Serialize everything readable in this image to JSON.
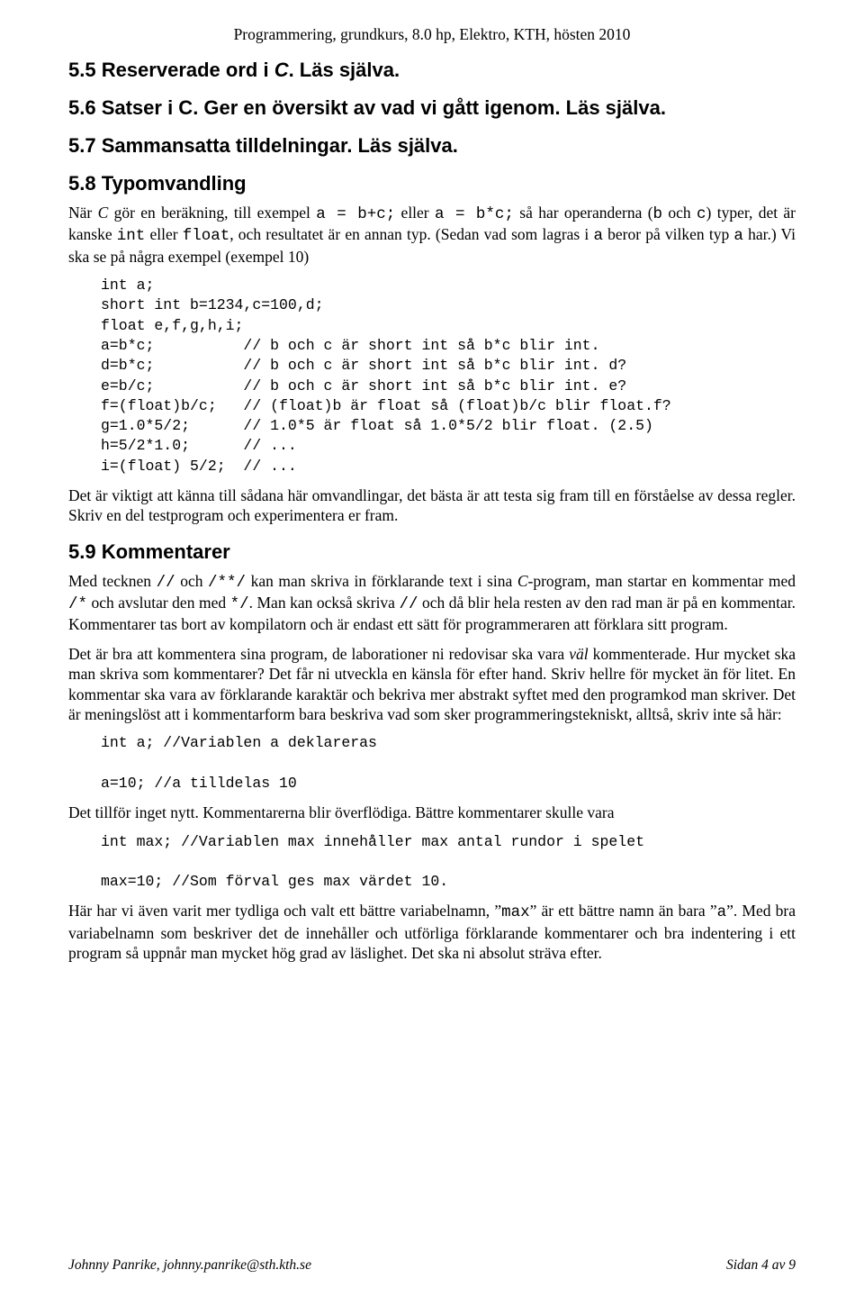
{
  "header": "Programmering, grundkurs, 8.0 hp, Elektro, KTH, hösten 2010",
  "s55": {
    "title": "5.5 Reserverade ord i C. Läs själva.",
    "title_html": "5.5 Reserverade ord i <span class=\"italic\">C</span>. Läs själva."
  },
  "s56": {
    "title": "5.6 Satser i C. Ger en översikt av vad vi gått igenom. Läs själva."
  },
  "s57": {
    "title": "5.7 Sammansatta tilldelningar. Läs själva."
  },
  "s58": {
    "title": "5.8 Typomvandling",
    "p1": "När <span class=\"italic\">C</span> gör en beräkning, till exempel <span class=\"mono\">a = b+c;</span> eller <span class=\"mono\">a = b*c;</span> så har operanderna (<span class=\"mono\">b</span> och <span class=\"mono\">c</span>) typer, det är kanske <span class=\"mono\">int</span> eller <span class=\"mono\">float</span>, och resultatet är en annan typ. (Sedan vad som lagras i <span class=\"mono\">a</span> beror på vilken typ <span class=\"mono\">a</span> har.) Vi ska se på några exempel (exempel 10)",
    "code": "int a;\nshort int b=1234,c=100,d;\nfloat e,f,g,h,i;\na=b*c;          // b och c är short int så b*c blir int.\nd=b*c;          // b och c är short int så b*c blir int. d?\ne=b/c;          // b och c är short int så b*c blir int. e?\nf=(float)b/c;   // (float)b är float så (float)b/c blir float.f?\ng=1.0*5/2;      // 1.0*5 är float så 1.0*5/2 blir float. (2.5)\nh=5/2*1.0;      // ...\ni=(float) 5/2;  // ...",
    "p2": "Det är viktigt att känna till sådana här omvandlingar, det bästa är att testa sig fram till en förståelse av dessa regler. Skriv en del testprogram och experimentera er fram."
  },
  "s59": {
    "title": "5.9 Kommentarer",
    "p1": "Med tecknen <span class=\"mono\">//</span> och <span class=\"mono\">/**/</span> kan man skriva in förklarande text i sina <span class=\"italic\">C</span>-program, man startar en kommentar med <span class=\"mono\">/*</span> och avslutar den med <span class=\"mono\">*/</span>. Man kan också skriva <span class=\"mono\">//</span> och då blir hela resten av den rad man är på en kommentar. Kommentarer tas bort av kompilatorn och är endast ett sätt för programmeraren att förklara sitt program.",
    "p2": "Det är bra att kommentera sina program, de laborationer ni redovisar ska vara <span class=\"italic\">väl</span> kommenterade. Hur mycket ska man skriva som kommentarer? Det får ni utveckla en känsla för efter hand. Skriv hellre för mycket än för litet. En kommentar ska vara av förklarande karaktär och bekriva mer abstrakt syftet med den programkod man skriver. Det är meningslöst att i kommentarform bara beskriva vad som sker programmeringstekniskt, alltså, skriv inte så här:",
    "code1": "int a; //Variablen a deklareras\n\na=10; //a tilldelas 10",
    "p3": "Det tillför inget nytt. Kommentarerna blir överflödiga. Bättre kommentarer skulle vara",
    "code2": "int max; //Variablen max innehåller max antal rundor i spelet\n\nmax=10; //Som förval ges max värdet 10.",
    "p4": "Här har vi även varit mer tydliga och valt ett bättre variabelnamn, ”<span class=\"mono\">max</span>” är ett bättre namn än bara ”<span class=\"mono\">a</span>”. Med bra variabelnamn som beskriver det de innehåller och utförliga förklarande kommentarer och bra indentering i ett program så uppnår man mycket hög grad av läslighet. Det ska ni absolut sträva efter."
  },
  "footer": {
    "left": "Johnny Panrike, johnny.panrike@sth.kth.se",
    "right": "Sidan 4 av 9"
  }
}
